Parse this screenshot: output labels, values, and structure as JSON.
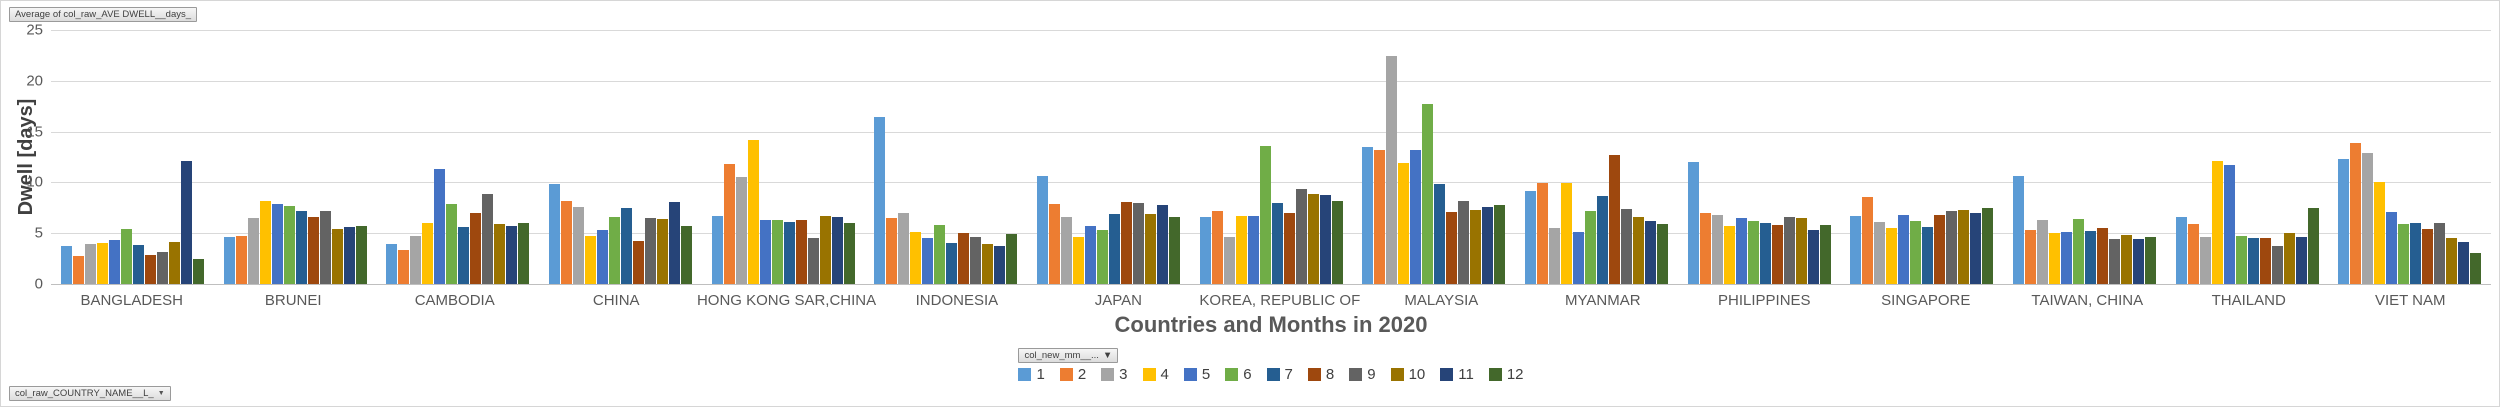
{
  "pivot_buttons": {
    "value_field": "Average of col_raw_AVE DWELL__days_",
    "legend_field": "col_new_mm__...",
    "axis_field": "col_raw_COUNTRY_NAME__L_",
    "dropdown_arrow": "▼"
  },
  "chart_data": {
    "type": "bar",
    "title": "Countries and Months in 2020",
    "ylabel": "Dwell [days]",
    "ylim": [
      0,
      25
    ],
    "y_ticks": [
      0,
      5,
      10,
      15,
      20,
      25
    ],
    "grid": "horizontal",
    "legend_position": "bottom-center",
    "categories": [
      "BANGLADESH",
      "BRUNEI",
      "CAMBODIA",
      "CHINA",
      "HONG KONG SAR,CHINA",
      "INDONESIA",
      "JAPAN",
      "KOREA, REPUBLIC OF",
      "MALAYSIA",
      "MYANMAR",
      "PHILIPPINES",
      "SINGAPORE",
      "TAIWAN, CHINA",
      "THAILAND",
      "VIET NAM"
    ],
    "series": [
      {
        "name": "1",
        "color": "#5B9BD5",
        "values": [
          3.7,
          4.6,
          3.9,
          9.8,
          6.7,
          16.4,
          10.6,
          6.6,
          13.5,
          9.2,
          12.0,
          6.7,
          10.6,
          6.6,
          12.3
        ]
      },
      {
        "name": "2",
        "color": "#ED7D31",
        "values": [
          2.8,
          4.7,
          3.4,
          8.2,
          11.8,
          6.5,
          7.9,
          7.2,
          13.2,
          9.9,
          7.0,
          8.6,
          5.3,
          5.9,
          13.9
        ]
      },
      {
        "name": "3",
        "color": "#A5A5A5",
        "values": [
          3.9,
          6.5,
          4.7,
          7.6,
          10.5,
          7.0,
          6.6,
          4.6,
          22.4,
          5.5,
          6.8,
          6.1,
          6.3,
          4.6,
          12.9
        ]
      },
      {
        "name": "4",
        "color": "#FFC000",
        "values": [
          4.0,
          8.2,
          6.0,
          4.7,
          14.2,
          5.1,
          4.6,
          6.7,
          11.9,
          9.9,
          5.7,
          5.5,
          5.0,
          12.1,
          10.0
        ]
      },
      {
        "name": "5",
        "color": "#4472C4",
        "values": [
          4.3,
          7.9,
          11.3,
          5.3,
          6.3,
          4.5,
          5.7,
          6.7,
          13.2,
          5.1,
          6.5,
          6.8,
          5.1,
          11.7,
          7.1
        ]
      },
      {
        "name": "6",
        "color": "#70AD47",
        "values": [
          5.4,
          7.7,
          7.9,
          6.6,
          6.3,
          5.8,
          5.3,
          13.6,
          17.7,
          7.2,
          6.2,
          6.2,
          6.4,
          4.7,
          5.9
        ]
      },
      {
        "name": "7",
        "color": "#255E91",
        "values": [
          3.8,
          7.2,
          5.6,
          7.5,
          6.1,
          4.0,
          6.9,
          8.0,
          9.8,
          8.7,
          6.0,
          5.6,
          5.2,
          4.5,
          6.0
        ]
      },
      {
        "name": "8",
        "color": "#9E480E",
        "values": [
          2.9,
          6.6,
          7.0,
          4.2,
          6.3,
          5.0,
          8.1,
          7.0,
          7.1,
          12.7,
          5.8,
          6.8,
          5.5,
          4.5,
          5.4
        ]
      },
      {
        "name": "9",
        "color": "#636363",
        "values": [
          3.2,
          7.2,
          8.9,
          6.5,
          4.5,
          4.6,
          8.0,
          9.4,
          8.2,
          7.4,
          6.6,
          7.2,
          4.4,
          3.7,
          6.0
        ]
      },
      {
        "name": "10",
        "color": "#997300",
        "values": [
          4.1,
          5.4,
          5.9,
          6.4,
          6.7,
          3.9,
          6.9,
          8.9,
          7.3,
          6.6,
          6.5,
          7.3,
          4.8,
          5.0,
          4.5
        ]
      },
      {
        "name": "11",
        "color": "#264478",
        "values": [
          12.1,
          5.6,
          5.7,
          8.1,
          6.6,
          3.7,
          7.8,
          8.8,
          7.6,
          6.2,
          5.3,
          7.0,
          4.4,
          4.6,
          4.1
        ]
      },
      {
        "name": "12",
        "color": "#43682B",
        "values": [
          2.5,
          5.7,
          6.0,
          5.7,
          6.0,
          4.9,
          6.6,
          8.2,
          7.8,
          5.9,
          5.8,
          7.5,
          4.6,
          7.5,
          3.1
        ]
      }
    ]
  },
  "style": {
    "gridline_color": "#D9D9D9",
    "axis_line_color": "#BFBFBF",
    "text_color": "#595959"
  }
}
